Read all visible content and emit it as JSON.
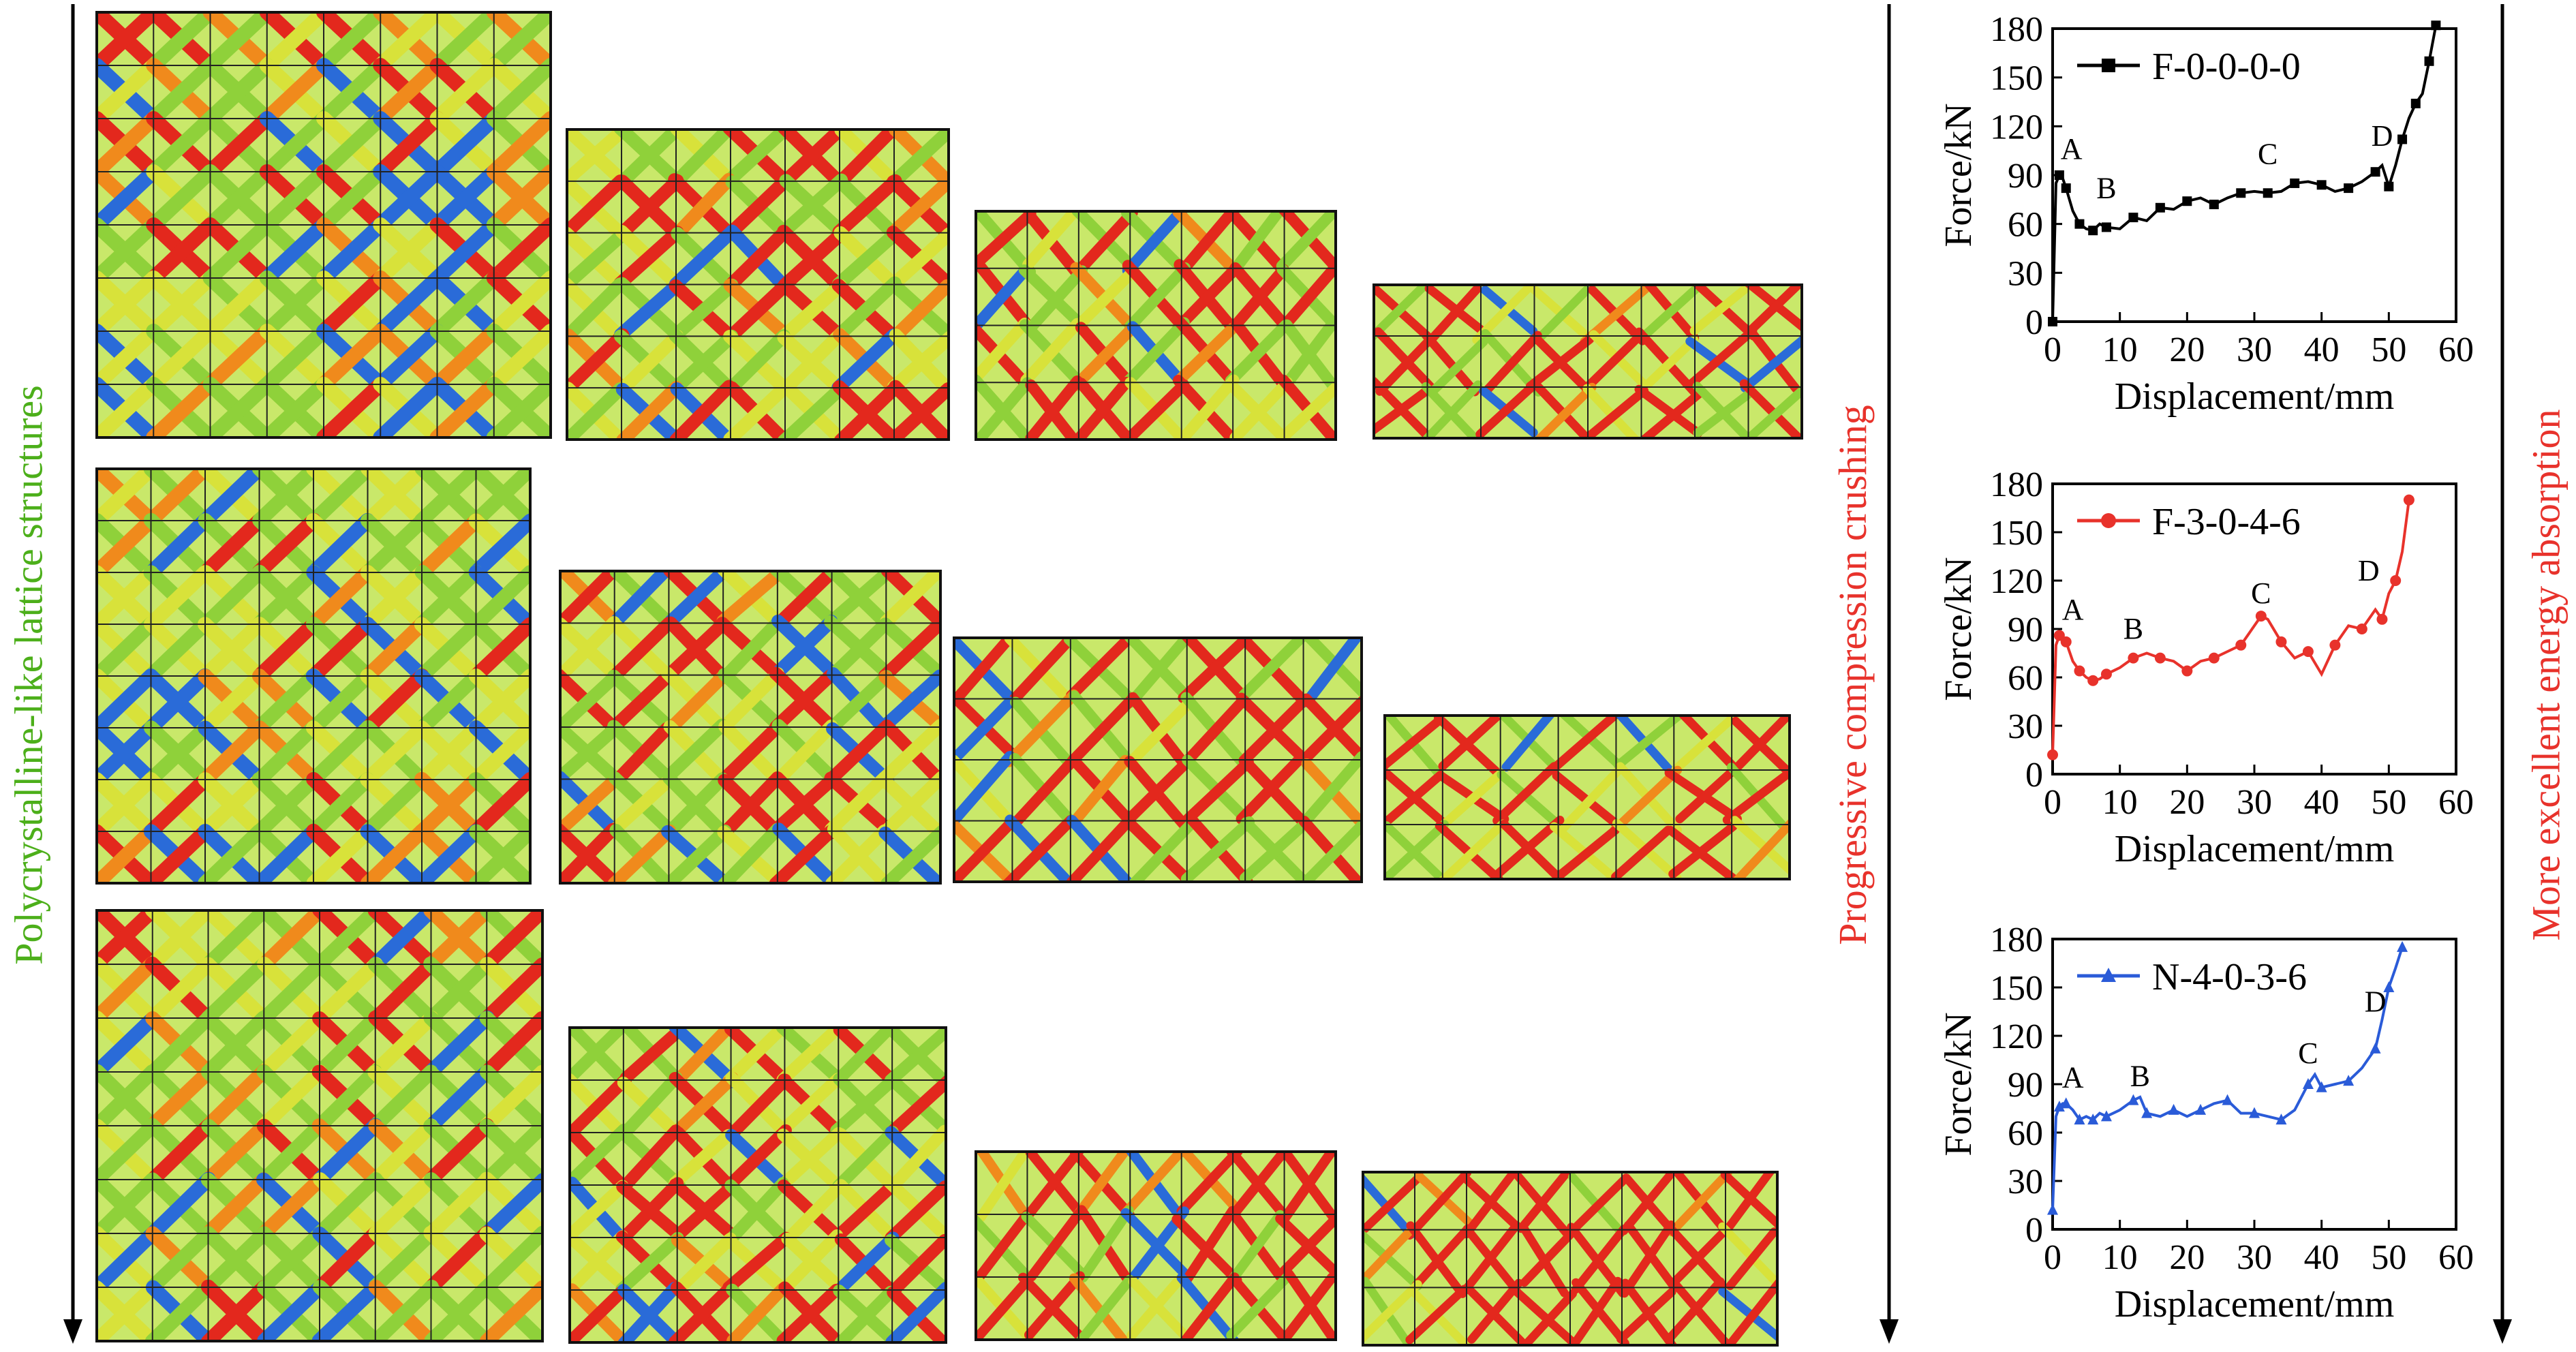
{
  "labels": {
    "left": "Polycrystalline-like lattice structures",
    "middle": "Progressive compression crushing",
    "right": "More excellent energy absorption"
  },
  "colors": {
    "left_label": "#4caf1a",
    "middle_label": "#e8322b",
    "right_label": "#e8322b",
    "lattice_green": "#8fd13a",
    "lattice_yellow": "#d8e23a",
    "lattice_red": "#e3281d",
    "lattice_blue": "#2a6bd8",
    "lattice_orange": "#f08a1c"
  },
  "chart_data": [
    {
      "type": "line",
      "legend": "F-0-0-0-0",
      "xlabel": "Displacement/mm",
      "ylabel": "Force/kN",
      "xlim": [
        0,
        60
      ],
      "ylim": [
        0,
        180
      ],
      "xticks": [
        0,
        10,
        20,
        30,
        40,
        50,
        60
      ],
      "yticks": [
        0,
        30,
        60,
        90,
        120,
        150,
        180
      ],
      "color": "#000000",
      "marker": "square",
      "x": [
        0,
        0.5,
        1,
        1.5,
        2,
        3,
        4,
        5,
        6,
        7,
        8,
        10,
        12,
        14,
        16,
        18,
        20,
        22,
        24,
        26,
        28,
        30,
        32,
        34,
        36,
        38,
        40,
        42,
        44,
        46,
        48,
        49,
        50,
        51,
        52,
        53,
        54,
        55,
        56,
        57
      ],
      "y": [
        0,
        85,
        90,
        88,
        82,
        68,
        60,
        57,
        56,
        60,
        58,
        57,
        64,
        62,
        70,
        69,
        74,
        76,
        72,
        76,
        79,
        80,
        79,
        80,
        85,
        86,
        84,
        80,
        82,
        86,
        92,
        96,
        83,
        96,
        112,
        125,
        134,
        140,
        160,
        182
      ],
      "annotations": [
        {
          "text": "A",
          "x": 2.8,
          "y": 100
        },
        {
          "text": "B",
          "x": 8,
          "y": 76
        },
        {
          "text": "C",
          "x": 32,
          "y": 97
        },
        {
          "text": "D",
          "x": 49,
          "y": 108
        }
      ]
    },
    {
      "type": "line",
      "legend": "F-3-0-4-6",
      "xlabel": "Displacement/mm",
      "ylabel": "Force/kN",
      "xlim": [
        0,
        60
      ],
      "ylim": [
        0,
        180
      ],
      "xticks": [
        0,
        10,
        20,
        30,
        40,
        50,
        60
      ],
      "yticks": [
        0,
        30,
        60,
        90,
        120,
        150,
        180
      ],
      "color": "#e8322b",
      "marker": "circle",
      "x": [
        0,
        0.5,
        1,
        1.5,
        2,
        3,
        4,
        5,
        6,
        7,
        8,
        10,
        12,
        14,
        16,
        18,
        20,
        22,
        24,
        26,
        28,
        30,
        31,
        32,
        34,
        36,
        38,
        40,
        42,
        44,
        46,
        48,
        49,
        50,
        51,
        52,
        53
      ],
      "y": [
        12,
        80,
        86,
        85,
        82,
        70,
        64,
        60,
        58,
        59,
        62,
        66,
        72,
        75,
        72,
        70,
        64,
        70,
        72,
        76,
        80,
        92,
        98,
        96,
        82,
        72,
        76,
        62,
        80,
        92,
        90,
        102,
        96,
        112,
        120,
        138,
        170
      ],
      "annotations": [
        {
          "text": "A",
          "x": 3,
          "y": 96
        },
        {
          "text": "B",
          "x": 12,
          "y": 84
        },
        {
          "text": "C",
          "x": 31,
          "y": 106
        },
        {
          "text": "D",
          "x": 47,
          "y": 120
        }
      ]
    },
    {
      "type": "line",
      "legend": "N-4-0-3-6",
      "xlabel": "Displacement/mm",
      "ylabel": "Force/kN",
      "xlim": [
        0,
        60
      ],
      "ylim": [
        0,
        180
      ],
      "xticks": [
        0,
        10,
        20,
        30,
        40,
        50,
        60
      ],
      "yticks": [
        0,
        30,
        60,
        90,
        120,
        150,
        180
      ],
      "color": "#2a5bd8",
      "marker": "triangle",
      "x": [
        0,
        0.5,
        1,
        1.5,
        2,
        3,
        4,
        5,
        6,
        7,
        8,
        10,
        12,
        13,
        14,
        16,
        18,
        20,
        22,
        24,
        26,
        28,
        30,
        32,
        34,
        36,
        38,
        39,
        40,
        42,
        44,
        46,
        48,
        49,
        50,
        51,
        52
      ],
      "y": [
        12,
        70,
        76,
        78,
        78,
        74,
        68,
        70,
        68,
        72,
        70,
        74,
        80,
        82,
        72,
        70,
        74,
        70,
        74,
        78,
        80,
        72,
        72,
        70,
        68,
        74,
        90,
        96,
        88,
        90,
        92,
        100,
        112,
        130,
        150,
        162,
        175
      ],
      "annotations": [
        {
          "text": "A",
          "x": 3,
          "y": 88
        },
        {
          "text": "B",
          "x": 13,
          "y": 89
        },
        {
          "text": "C",
          "x": 38,
          "y": 103
        },
        {
          "text": "D",
          "x": 48,
          "y": 135
        }
      ]
    }
  ]
}
